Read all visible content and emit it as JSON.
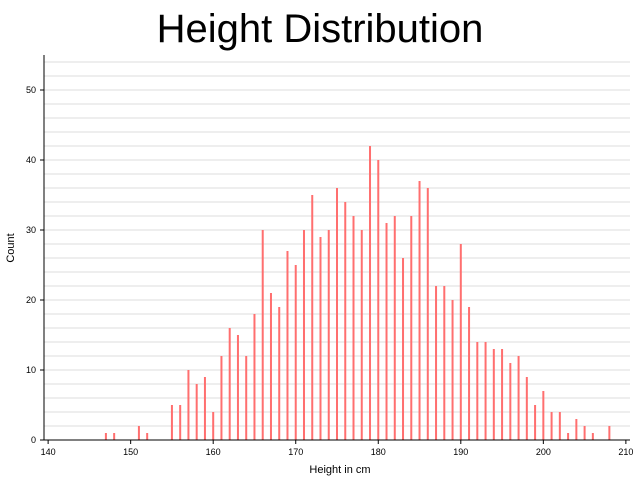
{
  "chart_data": {
    "type": "bar",
    "title": "Height Distribution",
    "xlabel": "Height in cm",
    "ylabel": "Count",
    "xlim": [
      139.5,
      210.5
    ],
    "ylim": [
      0,
      55
    ],
    "x_ticks": [
      140,
      150,
      160,
      170,
      180,
      190,
      200,
      210
    ],
    "y_ticks": [
      0,
      10,
      20,
      30,
      40,
      50
    ],
    "grid": "horizontal",
    "legend": "none",
    "bar_color": "#ff6f6f",
    "grid_color": "#dcdcdc",
    "points": [
      {
        "x": 147,
        "y": 1
      },
      {
        "x": 148,
        "y": 1
      },
      {
        "x": 151,
        "y": 2
      },
      {
        "x": 152,
        "y": 1
      },
      {
        "x": 155,
        "y": 5
      },
      {
        "x": 156,
        "y": 5
      },
      {
        "x": 157,
        "y": 10
      },
      {
        "x": 158,
        "y": 8
      },
      {
        "x": 159,
        "y": 9
      },
      {
        "x": 160,
        "y": 4
      },
      {
        "x": 161,
        "y": 12
      },
      {
        "x": 162,
        "y": 16
      },
      {
        "x": 163,
        "y": 15
      },
      {
        "x": 164,
        "y": 12
      },
      {
        "x": 165,
        "y": 18
      },
      {
        "x": 166,
        "y": 30
      },
      {
        "x": 167,
        "y": 21
      },
      {
        "x": 168,
        "y": 19
      },
      {
        "x": 169,
        "y": 27
      },
      {
        "x": 170,
        "y": 25
      },
      {
        "x": 171,
        "y": 30
      },
      {
        "x": 172,
        "y": 35
      },
      {
        "x": 173,
        "y": 29
      },
      {
        "x": 174,
        "y": 30
      },
      {
        "x": 175,
        "y": 36
      },
      {
        "x": 176,
        "y": 34
      },
      {
        "x": 177,
        "y": 32
      },
      {
        "x": 178,
        "y": 30
      },
      {
        "x": 179,
        "y": 42
      },
      {
        "x": 180,
        "y": 40
      },
      {
        "x": 181,
        "y": 31
      },
      {
        "x": 182,
        "y": 32
      },
      {
        "x": 183,
        "y": 26
      },
      {
        "x": 184,
        "y": 32
      },
      {
        "x": 185,
        "y": 37
      },
      {
        "x": 186,
        "y": 36
      },
      {
        "x": 187,
        "y": 22
      },
      {
        "x": 188,
        "y": 22
      },
      {
        "x": 189,
        "y": 20
      },
      {
        "x": 190,
        "y": 28
      },
      {
        "x": 191,
        "y": 19
      },
      {
        "x": 192,
        "y": 14
      },
      {
        "x": 193,
        "y": 14
      },
      {
        "x": 194,
        "y": 13
      },
      {
        "x": 195,
        "y": 13
      },
      {
        "x": 196,
        "y": 11
      },
      {
        "x": 197,
        "y": 12
      },
      {
        "x": 198,
        "y": 9
      },
      {
        "x": 199,
        "y": 5
      },
      {
        "x": 200,
        "y": 7
      },
      {
        "x": 201,
        "y": 4
      },
      {
        "x": 202,
        "y": 4
      },
      {
        "x": 203,
        "y": 1
      },
      {
        "x": 204,
        "y": 3
      },
      {
        "x": 205,
        "y": 2
      },
      {
        "x": 206,
        "y": 1
      },
      {
        "x": 208,
        "y": 2
      }
    ]
  }
}
